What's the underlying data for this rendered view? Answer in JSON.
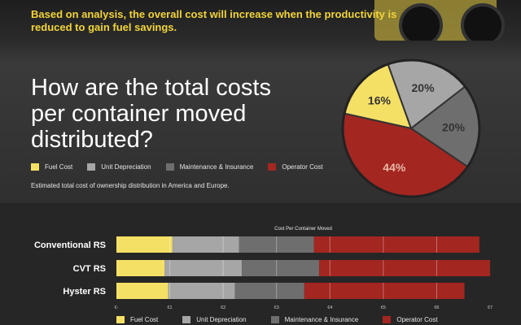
{
  "header": {
    "title": "",
    "analysis": "Based on analysis, the overall cost will increase when the productivity is reduced to gain fuel savings."
  },
  "question": "How are the total costs per container moved distributed?",
  "legend": [
    {
      "label": "Fuel Cost",
      "color": "#f5e066"
    },
    {
      "label": "Unit Depreciation",
      "color": "#a6a6a6"
    },
    {
      "label": "Maintenance & Insurance",
      "color": "#6e6e6e"
    },
    {
      "label": "Operator Cost",
      "color": "#a32620"
    }
  ],
  "note": "Estimated total cost of ownership distribution in America and Europe.",
  "chart_data": [
    {
      "type": "pie",
      "title": "",
      "slices": [
        {
          "label": "Fuel Cost",
          "value": 16,
          "display": "16%",
          "color": "#f5e066"
        },
        {
          "label": "Unit Depreciation",
          "value": 20,
          "display": "20%",
          "color": "#a6a6a6"
        },
        {
          "label": "Maintenance & Insurance",
          "value": 20,
          "display": "20%",
          "color": "#6e6e6e"
        },
        {
          "label": "Operator Cost",
          "value": 44,
          "display": "44%",
          "color": "#a32620"
        }
      ]
    },
    {
      "type": "bar",
      "orientation": "horizontal",
      "stacked": true,
      "title": "Cost Per Container Moved",
      "categories": [
        "Conventional RS",
        "CVT RS",
        "Hyster RS"
      ],
      "series": [
        {
          "name": "Fuel Cost",
          "color": "#f5e066",
          "values": [
            1.05,
            0.9,
            0.97
          ]
        },
        {
          "name": "Unit Depreciation",
          "color": "#a6a6a6",
          "values": [
            1.25,
            1.45,
            1.25
          ]
        },
        {
          "name": "Maintenance & Insurance",
          "color": "#6e6e6e",
          "values": [
            1.4,
            1.45,
            1.3
          ]
        },
        {
          "name": "Operator Cost",
          "color": "#a32620",
          "values": [
            3.1,
            3.2,
            3.0
          ]
        }
      ],
      "xticks": [
        "€-",
        "€1",
        "€2",
        "€3",
        "€4",
        "€5",
        "€6",
        "€7"
      ],
      "xlim": [
        0,
        7
      ],
      "grid": false
    }
  ]
}
